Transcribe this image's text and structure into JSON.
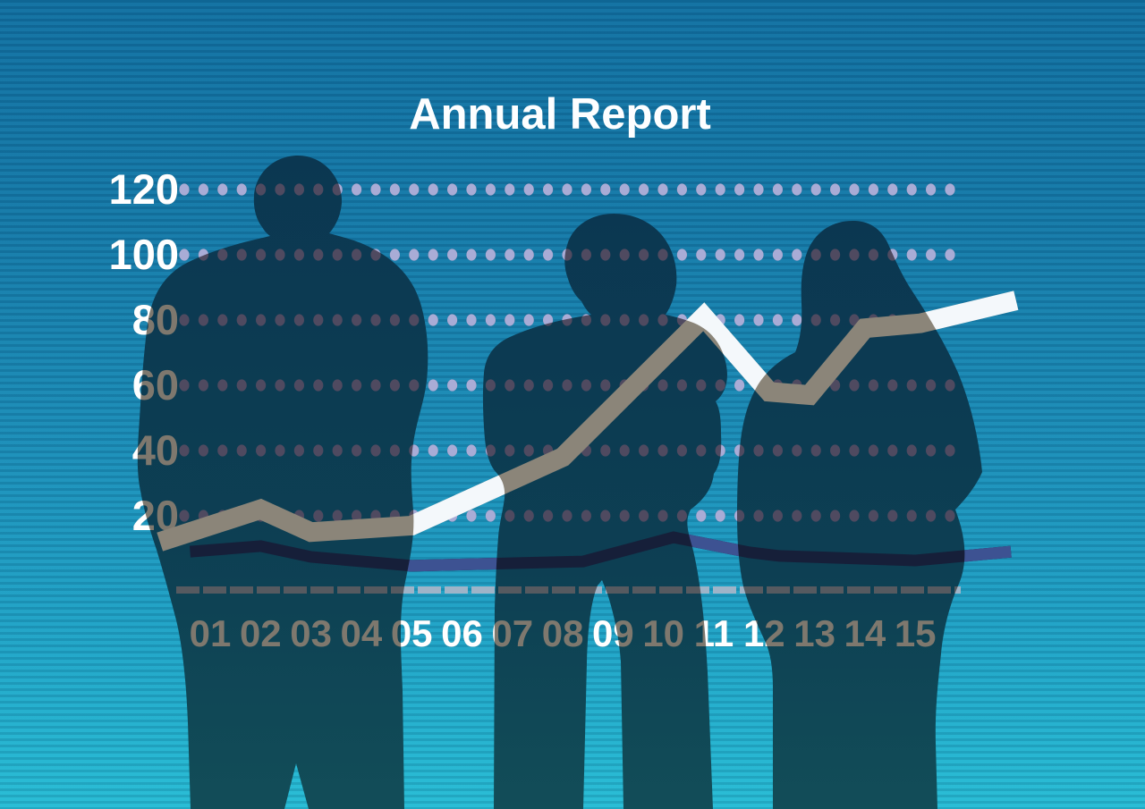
{
  "title": "Annual Report",
  "scene": {
    "description": "Three dark business-people silhouettes standing with backs to viewer in front of a large dotted-grid line chart on a blue striped background",
    "figures": [
      {
        "name": "businessman-left"
      },
      {
        "name": "businessman-center-arms-crossed"
      },
      {
        "name": "businesswoman-right-long-hair"
      }
    ]
  },
  "colors": {
    "background_top": "#106fa0",
    "background_middle": "#1a8db7",
    "background_bottom": "#26bcd4",
    "silhouette_top": "#0b3751",
    "silhouette_bottom": "#124d58",
    "title_text": "#fdfeff",
    "over_background": {
      "grid_dot": "#a9acd6",
      "tick_label": "#ffffff",
      "main_line": "#f4f8fb",
      "secondary_line": "#3d5292",
      "axis_baseline": "#9eb4c8"
    },
    "over_silhouette": {
      "grid_dot": "#4f4a60",
      "tick_label": "#7e786e",
      "main_line": "#8b8579",
      "secondary_line": "#161f39",
      "axis_baseline": "#565a60"
    }
  },
  "chart_data": {
    "type": "line",
    "title": "Annual Report",
    "xlabel": "",
    "ylabel": "",
    "x_tick_labels": [
      "01",
      "02",
      "03",
      "04",
      "05",
      "06",
      "07",
      "08",
      "09",
      "10",
      "11",
      "12",
      "13",
      "14",
      "15"
    ],
    "y_tick_labels": [
      "120",
      "100",
      "80",
      "60",
      "40",
      "20"
    ],
    "grid_values": [
      20,
      40,
      60,
      80,
      100,
      120
    ],
    "ylim": [
      0,
      130
    ],
    "grid": "horizontal dotted rows, one row of small dots per y tick",
    "legend_position": "none",
    "note": "x values are in year-label units (1 = label 01); both lines extend slightly past label 15; the thick main line reads white over the blue background and gray where it crosses the silhouettes; the thin secondary line is dark navy",
    "series": [
      {
        "name": "main-trend-line",
        "style": "thick",
        "points": [
          [
            0.0,
            12
          ],
          [
            2.0,
            22
          ],
          [
            3.0,
            15
          ],
          [
            5.0,
            17
          ],
          [
            8.0,
            38
          ],
          [
            10.8,
            81
          ],
          [
            12.1,
            58
          ],
          [
            12.9,
            57
          ],
          [
            14.0,
            77.5
          ],
          [
            15.1,
            79
          ],
          [
            17.0,
            86
          ]
        ]
      },
      {
        "name": "secondary-flat-line",
        "style": "thin",
        "points": [
          [
            0.6,
            9
          ],
          [
            2.0,
            10.7
          ],
          [
            3.0,
            7.4
          ],
          [
            5.0,
            4.7
          ],
          [
            8.4,
            6
          ],
          [
            10.2,
            13.4
          ],
          [
            11.7,
            8.8
          ],
          [
            12.3,
            7.7
          ],
          [
            15.0,
            6.3
          ],
          [
            16.9,
            9
          ]
        ]
      }
    ]
  }
}
